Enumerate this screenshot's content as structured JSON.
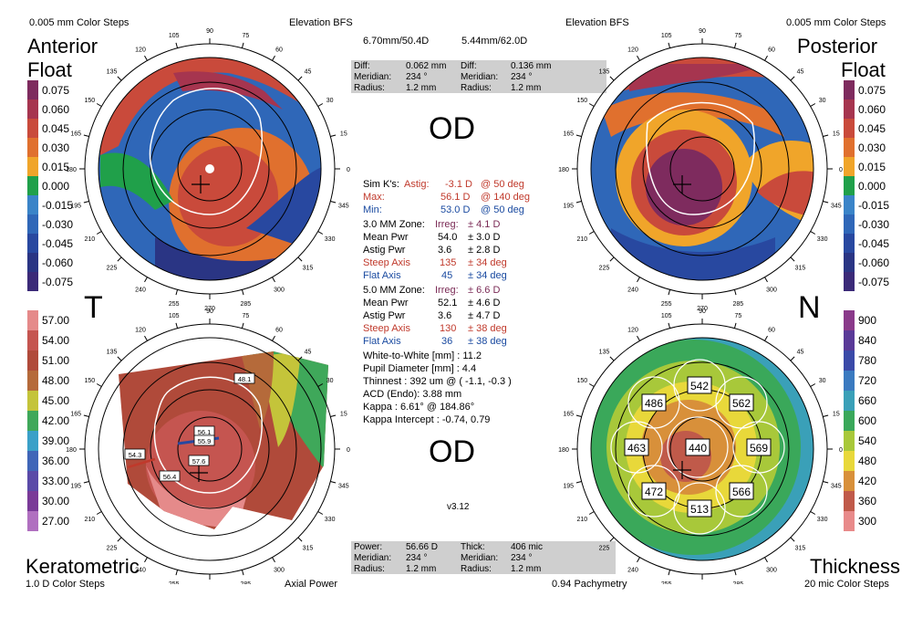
{
  "top": {
    "left_steps": "0.005 mm Color Steps",
    "left_title": "Elevation BFS",
    "right_title": "Elevation BFS",
    "right_steps": "0.005 mm Color Steps",
    "bfs_left": "6.70mm/50.4D",
    "bfs_right": "5.44mm/62.0D"
  },
  "labels": {
    "anterior1": "Anterior",
    "anterior2": "Float",
    "posterior1": "Posterior",
    "posterior2": "Float",
    "t": "T",
    "n": "N",
    "od_top": "OD",
    "od_bottom": "OD",
    "keratometric": "Keratometric",
    "kera_steps": "1.0 D Color Steps",
    "axial_power": "Axial Power",
    "pachy": "0.94 Pachymetry",
    "thickness": "Thickness",
    "thick_steps": "20 mic Color Steps",
    "version": "v3.12"
  },
  "diff_box": {
    "r1": [
      "Diff:",
      "0.062 mm",
      "Diff:",
      "0.136 mm"
    ],
    "r2": [
      "Meridian:",
      "234 °",
      "Meridian:",
      "234 °"
    ],
    "r3": [
      "Radius:",
      "1.2 mm",
      "Radius:",
      "1.2 mm"
    ]
  },
  "power_box": {
    "r1": [
      "Power:",
      "56.66 D",
      "Thick:",
      "406 mic"
    ],
    "r2": [
      "Meridian:",
      "234 °",
      "Meridian:",
      "234 °"
    ],
    "r3": [
      "Radius:",
      "1.2 mm",
      "Radius:",
      "1.2 mm"
    ]
  },
  "center": {
    "simk": [
      "Sim K's:",
      "Astig:",
      "-3.1 D",
      "@ 50 deg"
    ],
    "max": [
      "Max:",
      "56.1 D",
      "@ 140 deg"
    ],
    "min": [
      "Min:",
      "53.0 D",
      "@ 50 deg"
    ],
    "z3": [
      "3.0 MM Zone:",
      "Irreg:",
      "± 4.1 D"
    ],
    "z3mean": [
      "Mean Pwr",
      "54.0",
      "± 3.0 D"
    ],
    "z3astig": [
      "Astig Pwr",
      "3.6",
      "± 2.8 D"
    ],
    "z3steep": [
      "Steep Axis",
      "135",
      "± 34 deg"
    ],
    "z3flat": [
      "Flat Axis",
      "45",
      "± 34 deg"
    ],
    "z5": [
      "5.0 MM Zone:",
      "Irreg:",
      "± 6.6 D"
    ],
    "z5mean": [
      "Mean Pwr",
      "52.1",
      "± 4.6 D"
    ],
    "z5astig": [
      "Astig Pwr",
      "3.6",
      "± 4.7 D"
    ],
    "z5steep": [
      "Steep Axis",
      "130",
      "± 38 deg"
    ],
    "z5flat": [
      "Flat Axis",
      "36",
      "± 38 deg"
    ],
    "wtw": "White-to-White [mm] : 11.2",
    "pupil": "Pupil Diameter [mm] : 4.4",
    "thinnest": "Thinnest : 392 um @ ( -1.1, -0.3 )",
    "acd": "ACD (Endo): 3.88 mm",
    "kappa": "Kappa : 6.61° @ 184.86°",
    "kappa_int": "Kappa Intercept : -0.74, 0.79"
  },
  "float_scale": [
    "0.075",
    "0.060",
    "0.045",
    "0.030",
    "0.015",
    "0.000",
    "-0.015",
    "-0.030",
    "-0.045",
    "-0.060",
    "-0.075"
  ],
  "kera_scale": [
    "57.00",
    "54.00",
    "51.00",
    "48.00",
    "45.00",
    "42.00",
    "39.00",
    "36.00",
    "33.00",
    "30.00",
    "27.00"
  ],
  "thick_scale": [
    "900",
    "840",
    "780",
    "720",
    "660",
    "600",
    "540",
    "480",
    "420",
    "360",
    "300"
  ],
  "angles": [
    "0",
    "15",
    "30",
    "45",
    "60",
    "75",
    "90",
    "105",
    "120",
    "135",
    "150",
    "165",
    "180",
    "195",
    "210",
    "225",
    "240",
    "255",
    "270",
    "285",
    "300",
    "315",
    "330",
    "345"
  ],
  "kera_boxes": [
    "48.1",
    "56.1",
    "55.9",
    "57.6",
    "54.3",
    "56.4"
  ],
  "thick_values": [
    "542",
    "486",
    "562",
    "463",
    "440",
    "569",
    "472",
    "566",
    "513"
  ],
  "colors": {
    "float_scale": [
      "#7e2b5e",
      "#a6354f",
      "#c94a3b",
      "#e0702e",
      "#f0a52a",
      "#20a04a",
      "#3a84c8",
      "#2f67b8",
      "#2848a0",
      "#2a3584",
      "#3b2a78"
    ],
    "kera_scale": [
      "#e58a8a",
      "#c55550",
      "#b04a3a",
      "#b56a3a",
      "#c4c43a",
      "#3fa85a",
      "#3aa0c8",
      "#4066b8",
      "#5a4aa8",
      "#7a3a98",
      "#b070c0"
    ],
    "thick_scale": [
      "#8a3a8a",
      "#5a3a98",
      "#3a4aa8",
      "#3a7ac0",
      "#3aa0b8",
      "#3aa85a",
      "#a8c83a",
      "#e8d83a",
      "#d8903a",
      "#c05a4a",
      "#e88a8a"
    ]
  }
}
